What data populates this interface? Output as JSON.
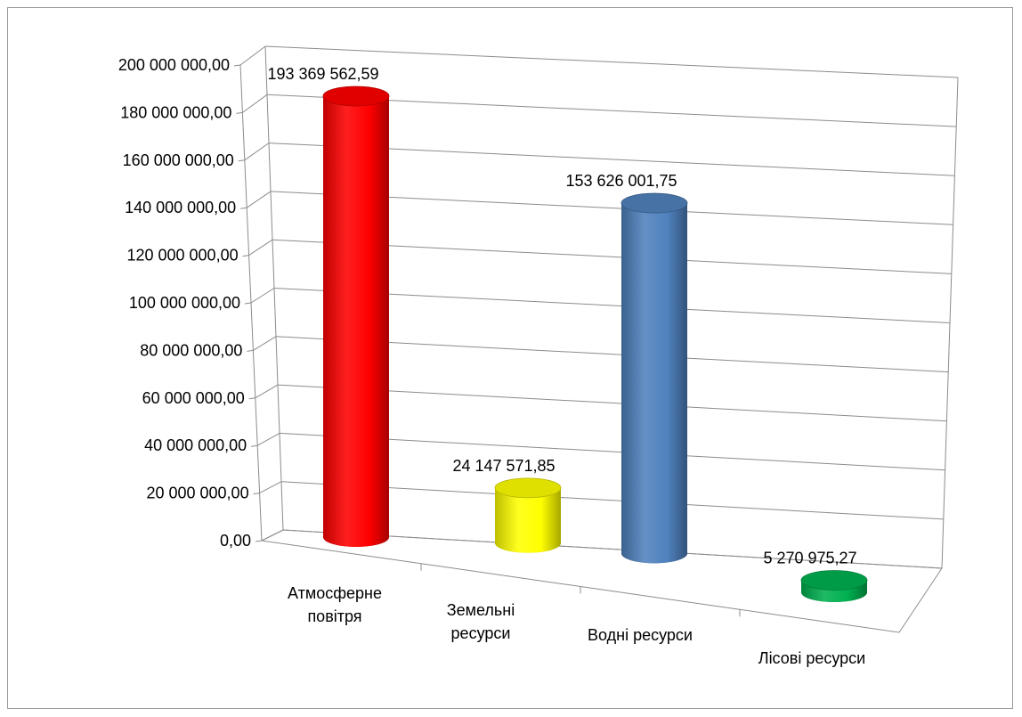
{
  "chart_data": {
    "type": "bar",
    "style": "3d-cylinder",
    "categories": [
      [
        "Атмосферне",
        "повітря"
      ],
      [
        "Земельні",
        "ресурси"
      ],
      [
        "Водні ресурси"
      ],
      [
        "Лісові ресурси"
      ]
    ],
    "values": [
      193369562.59,
      24147571.85,
      153626001.75,
      5270975.27
    ],
    "data_labels": [
      "193 369 562,59",
      "24 147 571,85",
      "153 626 001,75",
      "5 270 975,27"
    ],
    "colors": [
      "#ff0000",
      "#ffff00",
      "#4f81bd",
      "#00b050"
    ],
    "y_ticks": [
      "0,00",
      "20 000 000,00",
      "40 000 000,00",
      "60 000 000,00",
      "80 000 000,00",
      "100 000 000,00",
      "120 000 000,00",
      "140 000 000,00",
      "160 000 000,00",
      "180 000 000,00",
      "200 000 000,00"
    ],
    "ylim": [
      0,
      200000000
    ],
    "grid": true,
    "legend": "none"
  }
}
